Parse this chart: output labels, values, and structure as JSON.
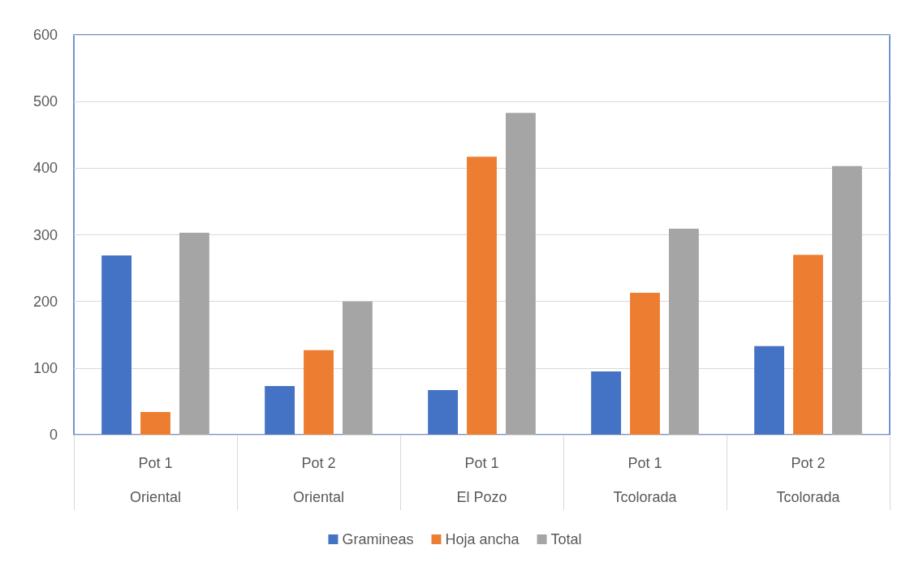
{
  "chart_data": {
    "type": "bar",
    "categories": [
      "Pot 1\nOriental",
      "Pot 2\nOriental",
      "Pot 1\nEl Pozo",
      "Pot 1\nTcolorada",
      "Pot 2\nTcolorada"
    ],
    "series": [
      {
        "name": "Gramineas",
        "color": "#4472c4",
        "values": [
          269,
          73,
          67,
          95,
          133
        ]
      },
      {
        "name": "Hoja ancha",
        "color": "#ed7d31",
        "values": [
          34,
          127,
          417,
          213,
          270
        ]
      },
      {
        "name": "Total",
        "color": "#a5a5a5",
        "values": [
          303,
          200,
          483,
          309,
          403
        ]
      }
    ],
    "ylim": [
      0,
      600
    ],
    "yticks": [
      0,
      100,
      200,
      300,
      400,
      500,
      600
    ],
    "grid": "y",
    "legend": "bottom"
  }
}
